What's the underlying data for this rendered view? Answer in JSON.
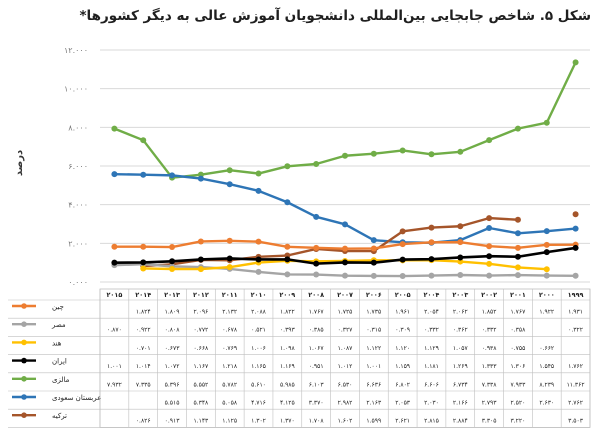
{
  "chart_data": {
    "type": "line",
    "title": "شکل ۵. شاخص جابجایی بین‌المللی دانشجویان آموزش عالی به دیگر کشورها*",
    "ylabel": "درصد",
    "ylim": [
      0,
      12
    ],
    "yticks": [
      "۰.۰۰۰",
      "۲.۰۰۰",
      "۴.۰۰۰",
      "۶.۰۰۰",
      "۸.۰۰۰",
      "۱۰.۰۰۰",
      "۱۲.۰۰۰"
    ],
    "categories": [
      "۱۹۹۹",
      "۲۰۰۰",
      "۲۰۰۱",
      "۲۰۰۲",
      "۲۰۰۳",
      "۲۰۰۴",
      "۲۰۰۵",
      "۲۰۰۶",
      "۲۰۰۷",
      "۲۰۰۸",
      "۲۰۰۹",
      "۲۰۱۰",
      "۲۰۱۱",
      "۲۰۱۲",
      "۲۰۱۳",
      "۲۰۱۴",
      "۲۰۱۵"
    ],
    "grid": true,
    "series": [
      {
        "name": "چین",
        "color": "#ed7d31",
        "values": [
          1.931,
          1.922,
          1.767,
          1.852,
          2.062,
          2.054,
          1.961,
          1.735,
          1.725,
          1.767,
          1.822,
          2.088,
          2.132,
          2.096,
          1.809,
          1.824,
          1.824
        ],
        "labels": [
          "۱.۹۳۱",
          "۱.۹۲۲",
          "۱.۷۶۷",
          "۱.۸۵۲",
          "۲.۰۶۲",
          "۲.۰۵۴",
          "۱.۹۶۱",
          "۱.۷۳۵",
          "۱.۷۲۵",
          "۱.۷۶۷",
          "۱.۸۲۲",
          "۲.۰۸۸",
          "۲.۱۳۲",
          "۲.۰۹۶",
          "۱.۸۰۹",
          "۱.۸۲۴",
          ""
        ]
      },
      {
        "name": "مصر",
        "color": "#a5a5a5",
        "values": [
          0.322,
          0.332,
          0.358,
          0.332,
          0.362,
          0.332,
          0.309,
          0.315,
          0.327,
          0.385,
          0.393,
          0.521,
          0.678,
          0.772,
          0.808,
          0.922,
          0.87
        ],
        "labels": [
          "۰.۳۲۲",
          "",
          "۰.۳۵۸",
          "۰.۳۳۲",
          "۰.۳۶۲",
          "۰.۳۳۲",
          "۰.۳۰۹",
          "۰.۳۱۵",
          "۰.۳۲۷",
          "۰.۳۸۵",
          "۰.۳۹۳",
          "۰.۵۲۱",
          "۰.۶۷۸",
          "۰.۷۷۲",
          "۰.۸۰۸",
          "۰.۹۲۲",
          "۰.۸۷۰"
        ]
      },
      {
        "name": "هند",
        "color": "#ffc000",
        "values": [
          null,
          0.662,
          0.755,
          0.938,
          1.057,
          1.129,
          1.12,
          1.122,
          1.087,
          1.067,
          1.098,
          1.006,
          0.769,
          0.668,
          0.673,
          0.701,
          null
        ],
        "labels": [
          "",
          "۰.۶۶۲",
          "۰.۷۵۵",
          "۰.۹۳۸",
          "۱.۰۵۷",
          "۱.۱۲۹",
          "۱.۱۲۰",
          "۱.۱۲۲",
          "۱.۰۸۷",
          "۱.۰۶۷",
          "۱.۰۹۸",
          "۱.۰۰۶",
          "۰.۷۶۹",
          "۰.۶۶۸",
          "۰.۶۷۳",
          "۰.۷۰۱",
          ""
        ]
      },
      {
        "name": "ایران",
        "color": "#000000",
        "values": [
          1.762,
          1.545,
          1.306,
          1.333,
          1.269,
          1.181,
          1.159,
          1.001,
          1.012,
          0.951,
          1.169,
          1.165,
          1.218,
          1.167,
          1.072,
          1.014,
          1.001
        ],
        "labels": [
          "۱.۷۶۲",
          "۱.۵۴۵",
          "۱.۳۰۶",
          "۱.۳۳۳",
          "۱.۲۶۹",
          "۱.۱۸۱",
          "۱.۱۵۹",
          "۱.۰۰۱",
          "۱.۰۱۲",
          "۰.۹۵۱",
          "۱.۱۶۹",
          "۱.۱۶۵",
          "۱.۲۱۸",
          "۱.۱۶۷",
          "۱.۰۷۲",
          "۱.۰۱۴",
          "۱.۰۰۱"
        ]
      },
      {
        "name": "مالزی",
        "color": "#70ad47",
        "values": [
          11.362,
          8.239,
          7.933,
          7.338,
          6.734,
          6.606,
          6.802,
          6.636,
          6.53,
          6.103,
          5.985,
          5.61,
          5.782,
          5.552,
          5.396,
          7.335,
          7.932
        ],
        "labels": [
          "۱۱.۳۶۲",
          "۸.۲۳۹",
          "۷.۹۳۳",
          "۷.۳۳۸",
          "۶.۷۳۴",
          "۶.۶۰۶",
          "۶.۸۰۲",
          "۶.۶۳۶",
          "۶.۵۳۰",
          "۶.۱۰۳",
          "۵.۹۸۵",
          "۵.۶۱۰",
          "۵.۷۸۲",
          "۵.۵۵۲",
          "۵.۳۹۶",
          "۷.۳۳۵",
          "۷.۹۳۲"
        ]
      },
      {
        "name": "عربستان سعودی",
        "color": "#2e75b6",
        "values": [
          2.762,
          2.63,
          2.52,
          2.793,
          2.166,
          2.03,
          2.053,
          2.163,
          2.982,
          3.37,
          4.125,
          4.716,
          5.058,
          5.348,
          5.515,
          5.55,
          5.579
        ],
        "labels": [
          "۲.۷۶۲",
          "۲.۶۳۰",
          "۲.۵۲۰",
          "۲.۷۹۳",
          "۲.۱۶۶",
          "۲.۰۳۰",
          "۲.۰۵۳",
          "۲.۱۶۳",
          "۲.۹۸۲",
          "۳.۳۷۰",
          "۴.۱۲۵",
          "۴.۷۱۶",
          "۵.۰۵۸",
          "۵.۳۴۸",
          "۵.۵۱۵",
          "",
          ""
        ]
      },
      {
        "name": "ترکیه",
        "color": "#a5552a",
        "values": [
          3.503,
          null,
          3.22,
          3.305,
          2.884,
          2.815,
          2.621,
          1.599,
          1.602,
          1.708,
          1.37,
          1.302,
          1.125,
          1.143,
          0.913,
          0.826,
          null
        ],
        "labels": [
          "۳.۵۰۳",
          "",
          "۳.۲۲۰",
          "۳.۳۰۵",
          "۲.۸۸۴",
          "۲.۸۱۵",
          "۲.۶۲۱",
          "۱.۵۹۹",
          "۱.۶۰۲",
          "۱.۷۰۸",
          "۱.۳۷۰",
          "۱.۳۰۲",
          "۱.۱۲۵",
          "۱.۱۴۳",
          "۰.۹۱۳",
          "۰.۸۲۶",
          ""
        ]
      }
    ]
  }
}
